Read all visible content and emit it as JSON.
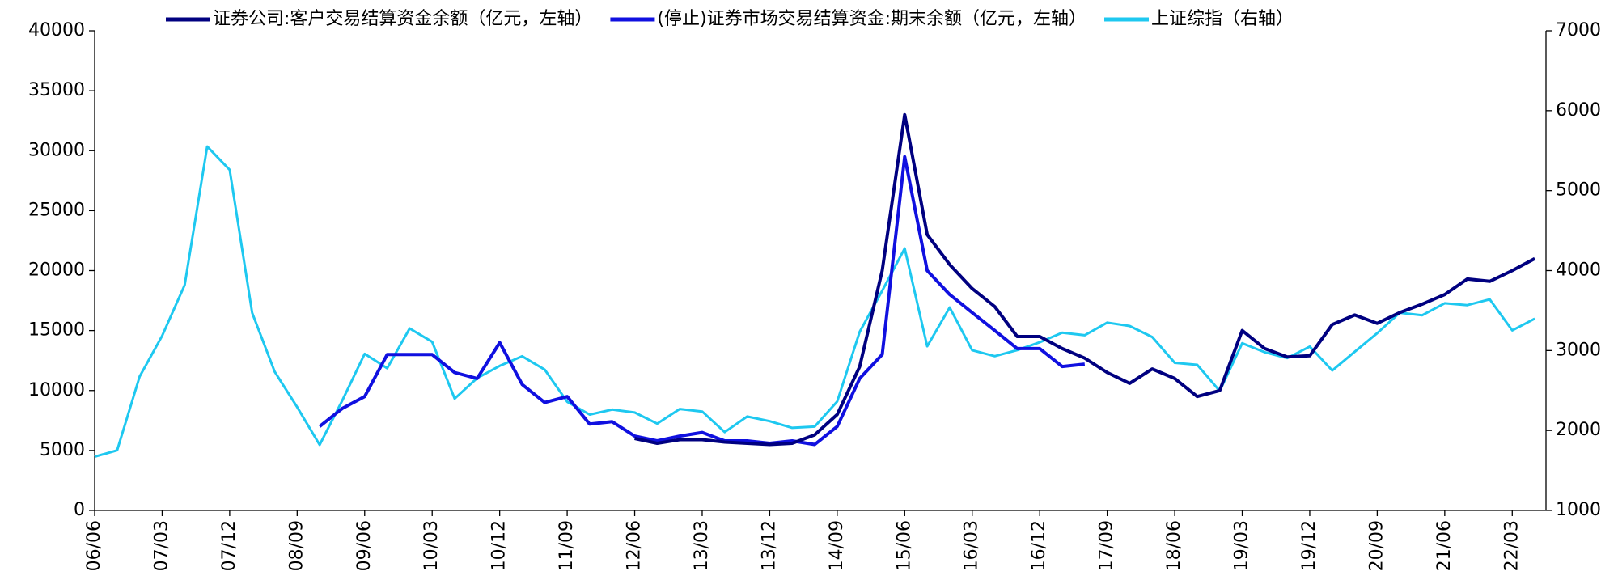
{
  "chart_data": {
    "type": "line",
    "categories": [
      "06/06",
      null,
      null,
      "07/03",
      null,
      null,
      "07/12",
      null,
      null,
      "08/09",
      null,
      null,
      "09/06",
      null,
      null,
      "10/03",
      null,
      null,
      "10/12",
      null,
      null,
      "11/09",
      null,
      null,
      "12/06",
      null,
      null,
      "13/03",
      null,
      null,
      "13/12",
      null,
      null,
      "14/09",
      null,
      null,
      "15/06",
      null,
      null,
      "16/03",
      null,
      null,
      "16/12",
      null,
      null,
      "17/09",
      null,
      null,
      "18/06",
      null,
      null,
      "19/03",
      null,
      null,
      "19/12",
      null,
      null,
      "20/09",
      null,
      null,
      "21/06",
      null,
      null,
      "22/03",
      null
    ],
    "series": [
      {
        "name": "证券公司:客户交易结算资金余额（亿元，左轴）",
        "color": "#000080",
        "axis": "y",
        "values": [
          null,
          null,
          null,
          null,
          null,
          null,
          null,
          null,
          null,
          null,
          null,
          null,
          null,
          null,
          null,
          null,
          null,
          null,
          null,
          null,
          null,
          null,
          null,
          null,
          6000,
          5600,
          5900,
          5900,
          5700,
          5600,
          5500,
          5600,
          6300,
          8000,
          12000,
          20000,
          33000,
          23000,
          20500,
          18500,
          17000,
          14500,
          14500,
          13500,
          12700,
          11500,
          10600,
          11800,
          11000,
          9500,
          10000,
          15000,
          13500,
          12800,
          12900,
          15500,
          16300,
          15600,
          16500,
          17200,
          18000,
          19300,
          19100,
          20000,
          21000
        ]
      },
      {
        "name": "(停止)证券市场交易结算资金:期末余额（亿元，左轴）",
        "color": "#1010e0",
        "axis": "y",
        "values": [
          null,
          null,
          null,
          null,
          null,
          null,
          null,
          null,
          null,
          null,
          7000,
          8500,
          9500,
          13000,
          13000,
          13000,
          11500,
          11000,
          14000,
          10500,
          9000,
          9500,
          7200,
          7400,
          6200,
          5800,
          6200,
          6500,
          5800,
          5800,
          5600,
          5800,
          5500,
          7000,
          11000,
          13000,
          29500,
          20000,
          18000,
          16500,
          15000,
          13500,
          13500,
          12000,
          12200,
          null,
          null,
          null,
          null,
          null,
          null,
          null,
          null,
          null,
          null,
          null,
          null,
          null,
          null,
          null,
          null,
          null,
          null,
          null,
          null
        ]
      },
      {
        "name": "上证综指（右轴）",
        "color": "#1ec8f0",
        "axis": "y2",
        "values": [
          1672,
          1752,
          2675,
          3183,
          3820,
          5552,
          5261,
          3472,
          2736,
          2293,
          1821,
          2373,
          2959,
          2779,
          3277,
          3109,
          2398,
          2655,
          2808,
          2928,
          2762,
          2359,
          2199,
          2262,
          2225,
          2086,
          2269,
          2237,
          1979,
          2175,
          2116,
          2033,
          2048,
          2364,
          3235,
          3748,
          4277,
          3053,
          3539,
          3004,
          2930,
          3005,
          3104,
          3223,
          3192,
          3349,
          3307,
          3169,
          2847,
          2821,
          2494,
          3091,
          2979,
          2905,
          3050,
          2750,
          2985,
          3218,
          3473,
          3441,
          3591,
          3568,
          3640,
          3252,
          3399
        ]
      }
    ],
    "ylim": [
      0,
      40000
    ],
    "yticks": [
      0,
      5000,
      10000,
      15000,
      20000,
      25000,
      30000,
      35000,
      40000
    ],
    "y2lim": [
      1000,
      7000
    ],
    "y2ticks": [
      1000,
      2000,
      3000,
      4000,
      5000,
      6000,
      7000
    ]
  }
}
